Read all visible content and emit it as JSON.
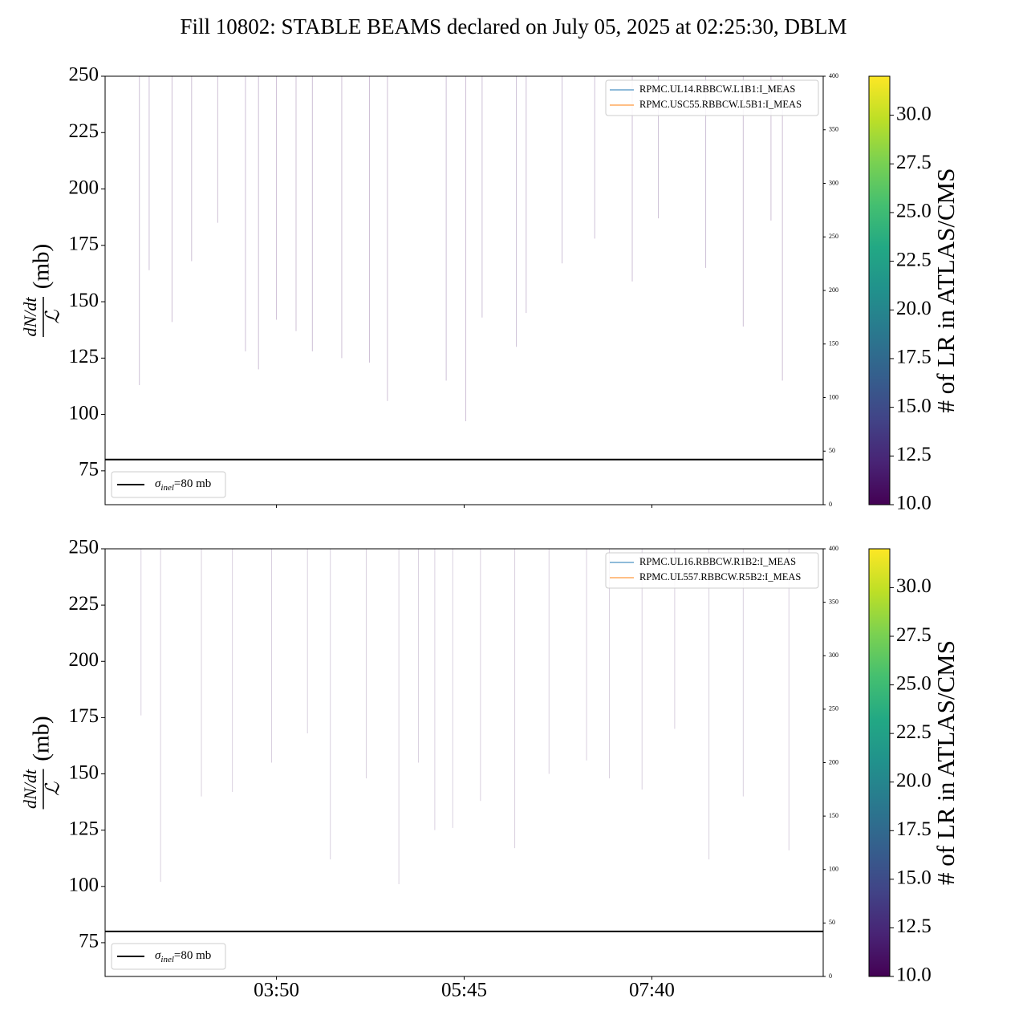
{
  "chart_data": [
    {
      "type": "line",
      "title": "Fill 10802: STABLE BEAMS declared on July 05, 2025 at 02:25:30, DBLM",
      "ylabel_numerator": "dN/dt",
      "ylabel_denominator": "ℒ",
      "ylabel_unit": "(mb)",
      "xlim": [
        "02:05",
        "09:25"
      ],
      "ylim": [
        60,
        250
      ],
      "yticks": [
        75,
        100,
        125,
        150,
        175,
        200,
        225,
        250
      ],
      "y2lim": [
        0,
        400
      ],
      "y2ticks": [
        0,
        50,
        100,
        150,
        200,
        250,
        300,
        350,
        400
      ],
      "spikes": {
        "x": [
          "02:26",
          "02:32",
          "02:46",
          "02:58",
          "03:14",
          "03:31",
          "03:39",
          "03:50",
          "04:02",
          "04:12",
          "04:30",
          "04:47",
          "04:58",
          "05:34",
          "05:46",
          "05:56",
          "06:17",
          "06:23",
          "06:45",
          "07:05",
          "07:28",
          "07:44",
          "08:13",
          "08:36",
          "08:53",
          "09:00"
        ],
        "values": [
          113,
          164,
          141,
          168,
          185,
          128,
          120,
          142,
          137,
          128,
          125,
          123,
          106,
          115,
          97,
          143,
          130,
          145,
          167,
          178,
          159,
          187,
          165,
          139,
          186,
          115
        ],
        "color": "#a58cb4"
      },
      "series": [
        {
          "name": "RPMC.UL14.RBBCW.L1B1:I_MEAS",
          "color": "#1f77b4",
          "axis": "y2",
          "x": [
            "02:25",
            "09:05"
          ],
          "values": [
            0,
            0
          ]
        },
        {
          "name": "RPMC.USC55.RBBCW.L5B1:I_MEAS",
          "color": "#ff7f0e",
          "axis": "y2",
          "x": [
            "02:25",
            "09:05"
          ],
          "values": [
            0,
            0
          ]
        }
      ],
      "legend_loc": "upper right",
      "reference_line": {
        "value": 80,
        "color": "#000000",
        "label_symbol": "σ",
        "label_subscript": "inel",
        "label_text": "=80 mb",
        "legend_loc": "lower left"
      },
      "colorbar": {
        "label": "# of LR in ATLAS/CMS",
        "lim": [
          10,
          32
        ],
        "ticks": [
          {
            "value": 10,
            "label": "10.0"
          },
          {
            "value": 12.5,
            "label": "12.5"
          },
          {
            "value": 15,
            "label": "15.0"
          },
          {
            "value": 17.5,
            "label": "17.5"
          },
          {
            "value": 20,
            "label": "20.0"
          },
          {
            "value": 22.5,
            "label": "22.5"
          },
          {
            "value": 25,
            "label": "25.0"
          },
          {
            "value": 27.5,
            "label": "27.5"
          },
          {
            "value": 30,
            "label": "30.0"
          }
        ]
      }
    },
    {
      "type": "line",
      "ylabel_numerator": "dN/dt",
      "ylabel_denominator": "ℒ",
      "ylabel_unit": "(mb)",
      "xlim": [
        "02:05",
        "09:25"
      ],
      "xticks": [
        "03:50",
        "05:45",
        "07:40"
      ],
      "ylim": [
        60,
        250
      ],
      "yticks": [
        75,
        100,
        125,
        150,
        175,
        200,
        225,
        250
      ],
      "y2lim": [
        0,
        400
      ],
      "y2ticks": [
        0,
        50,
        100,
        150,
        200,
        250,
        300,
        350,
        400
      ],
      "spikes": {
        "x": [
          "02:27",
          "02:39",
          "03:04",
          "03:23",
          "03:47",
          "04:09",
          "04:23",
          "04:45",
          "05:05",
          "05:17",
          "05:27",
          "05:38",
          "05:55",
          "06:16",
          "06:37",
          "07:00",
          "07:14",
          "07:34",
          "07:54",
          "08:15",
          "08:36",
          "09:04"
        ],
        "values": [
          176,
          102,
          140,
          142,
          155,
          168,
          112,
          148,
          101,
          155,
          125,
          126,
          138,
          117,
          150,
          156,
          148,
          143,
          170,
          112,
          140,
          116
        ],
        "color": "#b9aac4"
      },
      "series": [
        {
          "name": "RPMC.UL16.RBBCW.R1B2:I_MEAS",
          "color": "#1f77b4",
          "axis": "y2",
          "x": [
            "02:25",
            "09:05"
          ],
          "values": [
            0,
            0
          ]
        },
        {
          "name": "RPMC.UL557.RBBCW.R5B2:I_MEAS",
          "color": "#ff7f0e",
          "axis": "y2",
          "x": [
            "02:25",
            "09:05"
          ],
          "values": [
            0,
            0
          ]
        }
      ],
      "legend_loc": "upper right",
      "reference_line": {
        "value": 80,
        "color": "#000000",
        "label_symbol": "σ",
        "label_subscript": "inel",
        "label_text": "=80 mb",
        "legend_loc": "lower left"
      },
      "colorbar": {
        "label": "# of LR in ATLAS/CMS",
        "lim": [
          10,
          32
        ],
        "ticks": [
          {
            "value": 10,
            "label": "10.0"
          },
          {
            "value": 12.5,
            "label": "12.5"
          },
          {
            "value": 15,
            "label": "15.0"
          },
          {
            "value": 17.5,
            "label": "17.5"
          },
          {
            "value": 20,
            "label": "20.0"
          },
          {
            "value": 22.5,
            "label": "22.5"
          },
          {
            "value": 25,
            "label": "25.0"
          },
          {
            "value": 27.5,
            "label": "27.5"
          },
          {
            "value": 30,
            "label": "30.0"
          }
        ]
      }
    }
  ]
}
